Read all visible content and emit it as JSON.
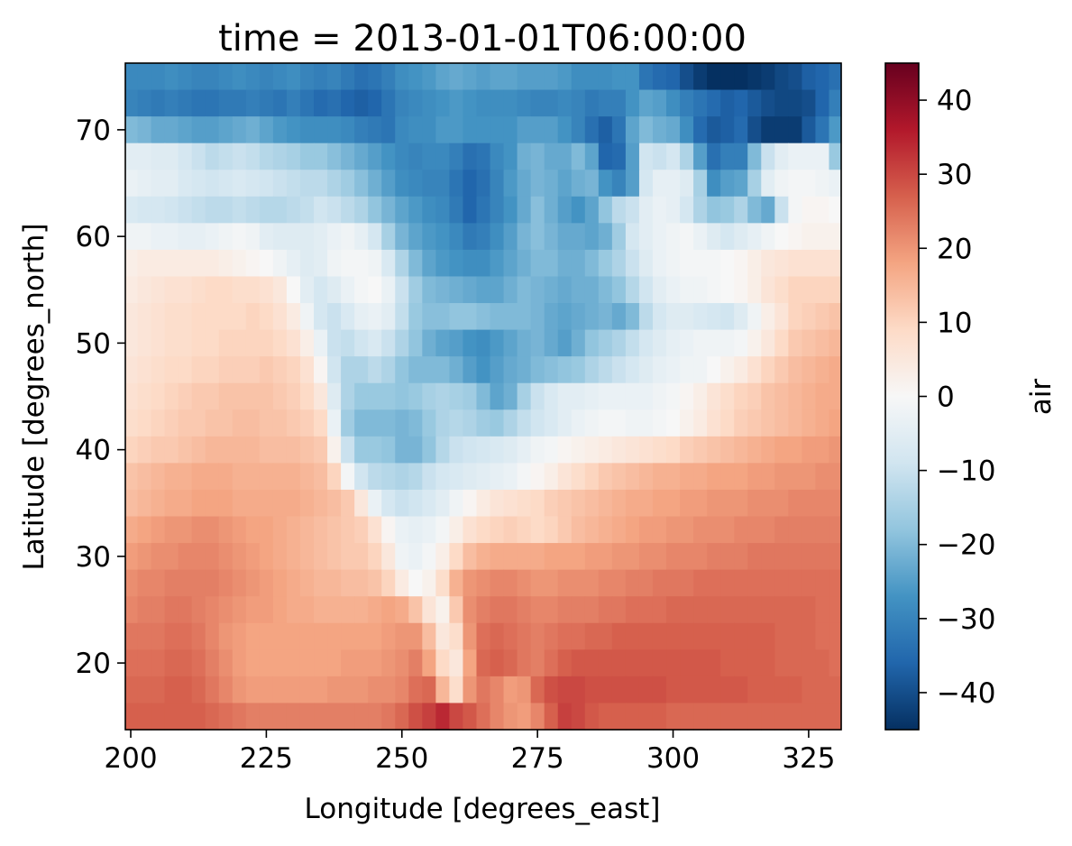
{
  "chart_data": {
    "type": "heatmap",
    "title": "time = 2013-01-01T06:00:00",
    "xlabel": "Longitude [degrees_east]",
    "ylabel": "Latitude [degrees_north]",
    "colorbar_label": "air",
    "colormap": "RdBu_r",
    "grid": false,
    "xlim": [
      199,
      331
    ],
    "ylim": [
      13.75,
      76.25
    ],
    "x_ticks": [
      200,
      225,
      250,
      275,
      300,
      325
    ],
    "y_ticks": [
      20,
      30,
      40,
      50,
      60,
      70
    ],
    "colorbar_range": [
      -45,
      45
    ],
    "colorbar_ticks": [
      -40,
      -30,
      -20,
      -10,
      0,
      10,
      20,
      30,
      40
    ],
    "x": [
      200,
      202.5,
      205,
      207.5,
      210,
      212.5,
      215,
      217.5,
      220,
      222.5,
      225,
      227.5,
      230,
      232.5,
      235,
      237.5,
      240,
      242.5,
      245,
      247.5,
      250,
      252.5,
      255,
      257.5,
      260,
      262.5,
      265,
      267.5,
      270,
      272.5,
      275,
      277.5,
      280,
      282.5,
      285,
      287.5,
      290,
      292.5,
      295,
      297.5,
      300,
      302.5,
      305,
      307.5,
      310,
      312.5,
      315,
      317.5,
      320,
      322.5,
      325,
      327.5,
      330
    ],
    "y": [
      75,
      72.5,
      70,
      67.5,
      65,
      62.5,
      60,
      57.5,
      55,
      52.5,
      50,
      47.5,
      45,
      42.5,
      40,
      37.5,
      35,
      32.5,
      30,
      27.5,
      25,
      22.5,
      20,
      17.5,
      15
    ],
    "grid_values": [
      [
        -29,
        -29,
        -29,
        -28,
        -29,
        -30,
        -30,
        -29,
        -28,
        -29,
        -30,
        -29,
        -28,
        -30,
        -31,
        -30,
        -32,
        -34,
        -33,
        -31,
        -28,
        -27,
        -26,
        -24,
        -23,
        -24,
        -25,
        -24,
        -24,
        -25,
        -25,
        -25,
        -26,
        -28,
        -28,
        -28,
        -27,
        -27,
        -33,
        -35,
        -36,
        -40,
        -43,
        -46,
        -46,
        -45,
        -44,
        -43,
        -41,
        -40,
        -37,
        -36,
        -34
      ],
      [
        -30,
        -31,
        -32,
        -31,
        -32,
        -33,
        -33,
        -32,
        -32,
        -31,
        -32,
        -33,
        -31,
        -33,
        -35,
        -34,
        -36,
        -37,
        -36,
        -33,
        -30,
        -29,
        -28,
        -27,
        -26,
        -27,
        -28,
        -28,
        -28,
        -29,
        -30,
        -30,
        -29,
        -30,
        -32,
        -31,
        -31,
        -27,
        -24,
        -25,
        -28,
        -31,
        -33,
        -35,
        -37,
        -36,
        -38,
        -40,
        -41,
        -41,
        -40,
        -36,
        -31
      ],
      [
        -20,
        -21,
        -23,
        -23,
        -24,
        -25,
        -25,
        -24,
        -23,
        -22,
        -24,
        -26,
        -27,
        -28,
        -28,
        -28,
        -29,
        -31,
        -32,
        -33,
        -29,
        -28,
        -28,
        -26,
        -26,
        -27,
        -27,
        -27,
        -27,
        -25,
        -25,
        -25,
        -27,
        -30,
        -34,
        -37,
        -33,
        -24,
        -20,
        -22,
        -23,
        -28,
        -35,
        -38,
        -37,
        -35,
        -40,
        -43,
        -43,
        -43,
        -38,
        -33,
        -26
      ],
      [
        -5,
        -5,
        -6,
        -6,
        -8,
        -10,
        -12,
        -11,
        -10,
        -11,
        -13,
        -14,
        -15,
        -17,
        -17,
        -19,
        -21,
        -23,
        -25,
        -27,
        -29,
        -30,
        -29,
        -29,
        -31,
        -34,
        -33,
        -29,
        -27,
        -22,
        -21,
        -23,
        -23,
        -20,
        -24,
        -36,
        -35,
        -25,
        -9,
        -10,
        -8,
        -14,
        -25,
        -34,
        -31,
        -31,
        -20,
        -10,
        -5,
        -3,
        -3,
        -3,
        -17
      ],
      [
        -3,
        -4,
        -5,
        -5,
        -7,
        -8,
        -9,
        -8,
        -7,
        -8,
        -9,
        -10,
        -11,
        -12,
        -12,
        -14,
        -16,
        -19,
        -22,
        -25,
        -28,
        -29,
        -30,
        -30,
        -33,
        -36,
        -34,
        -30,
        -26,
        -23,
        -21,
        -22,
        -24,
        -22,
        -21,
        -27,
        -30,
        -25,
        -8,
        -4,
        -4,
        -6,
        -15,
        -28,
        -25,
        -24,
        -15,
        -5,
        -2,
        -1,
        -1,
        -2,
        -3
      ],
      [
        -7,
        -8,
        -8,
        -9,
        -10,
        -11,
        -12,
        -12,
        -11,
        -12,
        -13,
        -13,
        -12,
        -11,
        -9,
        -10,
        -12,
        -14,
        -18,
        -21,
        -24,
        -26,
        -28,
        -29,
        -32,
        -36,
        -33,
        -30,
        -27,
        -23,
        -19,
        -22,
        -25,
        -27,
        -24,
        -18,
        -12,
        -10,
        -5,
        -3,
        -4,
        -8,
        -14,
        -18,
        -17,
        -14,
        -20,
        -23,
        -10,
        -1,
        1,
        1,
        0
      ],
      [
        -2,
        -2,
        -3,
        -3,
        -4,
        -4,
        -3,
        -2,
        -1,
        -2,
        -5,
        -6,
        -6,
        -6,
        -5,
        -3,
        -2,
        -4,
        -8,
        -15,
        -21,
        -24,
        -26,
        -27,
        -29,
        -32,
        -31,
        -28,
        -25,
        -21,
        -19,
        -21,
        -23,
        -23,
        -24,
        -22,
        -16,
        -8,
        -5,
        -3,
        -2,
        -1,
        -3,
        -6,
        -8,
        -6,
        -4,
        -2,
        0,
        1,
        2,
        2,
        2
      ],
      [
        3,
        4,
        4,
        4,
        4,
        4,
        4,
        3,
        2,
        1,
        0,
        -2,
        -4,
        -6,
        -5,
        -2,
        -1,
        -1,
        -2,
        -7,
        -14,
        -20,
        -24,
        -26,
        -27,
        -28,
        -28,
        -26,
        -24,
        -22,
        -20,
        -20,
        -22,
        -22,
        -20,
        -17,
        -14,
        -10,
        -6,
        -3,
        -2,
        -1,
        -1,
        -1,
        0,
        1,
        3,
        5,
        6,
        7,
        7,
        7,
        7
      ],
      [
        4,
        5,
        6,
        7,
        7,
        8,
        9,
        9,
        8,
        8,
        7,
        5,
        0,
        -5,
        -8,
        -6,
        -3,
        -1,
        0,
        -3,
        -10,
        -16,
        -20,
        -21,
        -22,
        -23,
        -24,
        -24,
        -22,
        -20,
        -21,
        -22,
        -23,
        -22,
        -22,
        -20,
        -18,
        -13,
        -9,
        -5,
        -3,
        -2,
        -2,
        -1,
        0,
        1,
        3,
        6,
        8,
        10,
        10,
        10,
        10
      ],
      [
        5,
        6,
        7,
        8,
        8,
        9,
        9,
        9,
        9,
        10,
        9,
        7,
        4,
        -2,
        -8,
        -10,
        -7,
        -4,
        -3,
        -5,
        -11,
        -17,
        -19,
        -19,
        -18,
        -18,
        -19,
        -20,
        -20,
        -20,
        -21,
        -23,
        -24,
        -23,
        -22,
        -21,
        -23,
        -20,
        -12,
        -8,
        -6,
        -6,
        -7,
        -8,
        -9,
        -6,
        -2,
        3,
        6,
        10,
        11,
        12,
        13
      ],
      [
        5,
        6,
        7,
        8,
        8,
        9,
        9,
        10,
        10,
        10,
        10,
        9,
        7,
        3,
        -3,
        -10,
        -11,
        -9,
        -7,
        -10,
        -14,
        -18,
        -22,
        -24,
        -25,
        -27,
        -28,
        -26,
        -24,
        -22,
        -21,
        -23,
        -25,
        -22,
        -18,
        -16,
        -14,
        -11,
        -8,
        -6,
        -4,
        -3,
        -2,
        -2,
        -2,
        -1,
        2,
        5,
        9,
        12,
        13,
        14,
        15
      ],
      [
        6,
        7,
        8,
        9,
        9,
        10,
        10,
        11,
        11,
        11,
        12,
        11,
        10,
        7,
        1,
        -9,
        -14,
        -14,
        -12,
        -14,
        -18,
        -20,
        -20,
        -20,
        -22,
        -25,
        -27,
        -25,
        -23,
        -22,
        -20,
        -19,
        -18,
        -17,
        -14,
        -12,
        -10,
        -8,
        -6,
        -4,
        -3,
        -2,
        -2,
        0,
        2,
        4,
        7,
        10,
        12,
        14,
        15,
        16,
        17
      ],
      [
        7,
        8,
        9,
        10,
        11,
        12,
        12,
        13,
        13,
        13,
        13,
        12,
        11,
        9,
        5,
        -6,
        -14,
        -17,
        -17,
        -17,
        -18,
        -17,
        -15,
        -14,
        -15,
        -16,
        -20,
        -24,
        -22,
        -15,
        -10,
        -7,
        -5,
        -5,
        -4,
        -3,
        -3,
        -3,
        -3,
        -2,
        -1,
        1,
        3,
        6,
        8,
        10,
        11,
        13,
        14,
        15,
        16,
        17,
        17
      ],
      [
        8,
        9,
        10,
        11,
        12,
        12,
        13,
        13,
        14,
        14,
        13,
        13,
        12,
        11,
        9,
        -3,
        -16,
        -20,
        -20,
        -20,
        -21,
        -20,
        -17,
        -14,
        -13,
        -14,
        -16,
        -17,
        -14,
        -11,
        -9,
        -7,
        -5,
        -3,
        -2,
        -1,
        -1,
        -2,
        -2,
        -1,
        0,
        2,
        4,
        7,
        9,
        11,
        12,
        13,
        14,
        15,
        16,
        17,
        18
      ],
      [
        10,
        11,
        12,
        12,
        13,
        14,
        15,
        15,
        15,
        15,
        14,
        14,
        14,
        13,
        12,
        2,
        -10,
        -17,
        -17,
        -18,
        -21,
        -21,
        -18,
        -13,
        -10,
        -9,
        -8,
        -7,
        -6,
        -4,
        -2,
        -1,
        1,
        2,
        3,
        4,
        5,
        6,
        7,
        8,
        9,
        11,
        12,
        13,
        14,
        15,
        16,
        17,
        18,
        18,
        19,
        19,
        20
      ],
      [
        13,
        14,
        15,
        16,
        16,
        17,
        17,
        17,
        16,
        16,
        16,
        16,
        16,
        15,
        14,
        10,
        -1,
        -9,
        -12,
        -13,
        -14,
        -13,
        -10,
        -8,
        -7,
        -6,
        -5,
        -4,
        -3,
        -1,
        1,
        3,
        6,
        8,
        10,
        12,
        13,
        14,
        15,
        16,
        16,
        17,
        17,
        18,
        18,
        18,
        19,
        19,
        20,
        20,
        20,
        21,
        21
      ],
      [
        14,
        15,
        16,
        17,
        17,
        18,
        18,
        18,
        17,
        17,
        17,
        17,
        17,
        16,
        15,
        14,
        12,
        5,
        -3,
        -8,
        -10,
        -9,
        -7,
        -5,
        -2,
        1,
        4,
        6,
        7,
        8,
        9,
        11,
        12,
        13,
        14,
        15,
        16,
        17,
        17,
        18,
        18,
        19,
        19,
        20,
        20,
        20,
        21,
        21,
        21,
        22,
        22,
        22,
        22
      ],
      [
        17,
        18,
        19,
        20,
        20,
        21,
        21,
        20,
        19,
        18,
        18,
        17,
        16,
        15,
        14,
        13,
        12,
        11,
        7,
        1,
        -3,
        -4,
        -3,
        -1,
        3,
        7,
        9,
        10,
        11,
        10,
        9,
        10,
        12,
        14,
        15,
        16,
        17,
        18,
        19,
        19,
        20,
        20,
        21,
        21,
        21,
        22,
        22,
        22,
        23,
        23,
        23,
        23,
        23
      ],
      [
        19,
        20,
        21,
        21,
        22,
        22,
        22,
        21,
        20,
        19,
        18,
        17,
        16,
        15,
        14,
        13,
        12,
        12,
        10,
        5,
        -2,
        -3,
        -1,
        3,
        9,
        14,
        16,
        17,
        17,
        17,
        17,
        18,
        18,
        18,
        19,
        19,
        20,
        20,
        21,
        21,
        22,
        22,
        22,
        23,
        23,
        23,
        24,
        24,
        24,
        24,
        24,
        24,
        24
      ],
      [
        21,
        22,
        22,
        23,
        23,
        23,
        23,
        22,
        21,
        20,
        19,
        18,
        17,
        16,
        15,
        15,
        14,
        14,
        13,
        10,
        4,
        0,
        2,
        8,
        16,
        20,
        21,
        22,
        22,
        21,
        20,
        20,
        21,
        21,
        21,
        22,
        22,
        23,
        23,
        24,
        24,
        24,
        25,
        25,
        25,
        25,
        25,
        25,
        25,
        25,
        25,
        25,
        25
      ],
      [
        22,
        23,
        23,
        24,
        24,
        23,
        22,
        21,
        20,
        19,
        19,
        18,
        17,
        17,
        16,
        16,
        16,
        16,
        17,
        18,
        17,
        13,
        6,
        2,
        12,
        21,
        23,
        24,
        24,
        23,
        22,
        22,
        23,
        23,
        23,
        24,
        24,
        25,
        25,
        25,
        26,
        26,
        26,
        26,
        26,
        26,
        26,
        26,
        26,
        26,
        26,
        25,
        25
      ],
      [
        24,
        24,
        24,
        25,
        25,
        24,
        22,
        20,
        19,
        18,
        18,
        18,
        18,
        18,
        18,
        18,
        18,
        18,
        18,
        19,
        20,
        20,
        14,
        5,
        8,
        20,
        25,
        26,
        25,
        24,
        23,
        24,
        25,
        25,
        26,
        26,
        27,
        27,
        27,
        27,
        27,
        27,
        27,
        27,
        27,
        27,
        27,
        27,
        26,
        26,
        26,
        25,
        25
      ],
      [
        25,
        25,
        25,
        26,
        26,
        25,
        23,
        21,
        19,
        18,
        18,
        18,
        18,
        18,
        18,
        18,
        19,
        19,
        19,
        20,
        21,
        23,
        18,
        9,
        5,
        18,
        26,
        27,
        26,
        24,
        23,
        25,
        27,
        28,
        28,
        28,
        28,
        28,
        28,
        28,
        28,
        28,
        28,
        28,
        27,
        27,
        27,
        27,
        26,
        26,
        26,
        26,
        25
      ],
      [
        26,
        26,
        26,
        27,
        27,
        26,
        24,
        22,
        20,
        19,
        19,
        19,
        19,
        19,
        19,
        20,
        20,
        20,
        21,
        21,
        22,
        25,
        26,
        15,
        8,
        20,
        24,
        22,
        19,
        20,
        26,
        29,
        30,
        30,
        29,
        29,
        29,
        29,
        29,
        29,
        28,
        28,
        28,
        28,
        28,
        28,
        27,
        27,
        27,
        27,
        26,
        26,
        26
      ],
      [
        27,
        27,
        27,
        27,
        27,
        27,
        26,
        25,
        24,
        23,
        23,
        23,
        23,
        23,
        23,
        23,
        23,
        23,
        23,
        24,
        26,
        29,
        31,
        34,
        30,
        28,
        25,
        22,
        20,
        19,
        22,
        27,
        31,
        30,
        28,
        27,
        27,
        27,
        27,
        27,
        26,
        26,
        26,
        26,
        26,
        26,
        26,
        26,
        26,
        26,
        26,
        26,
        26
      ]
    ]
  }
}
